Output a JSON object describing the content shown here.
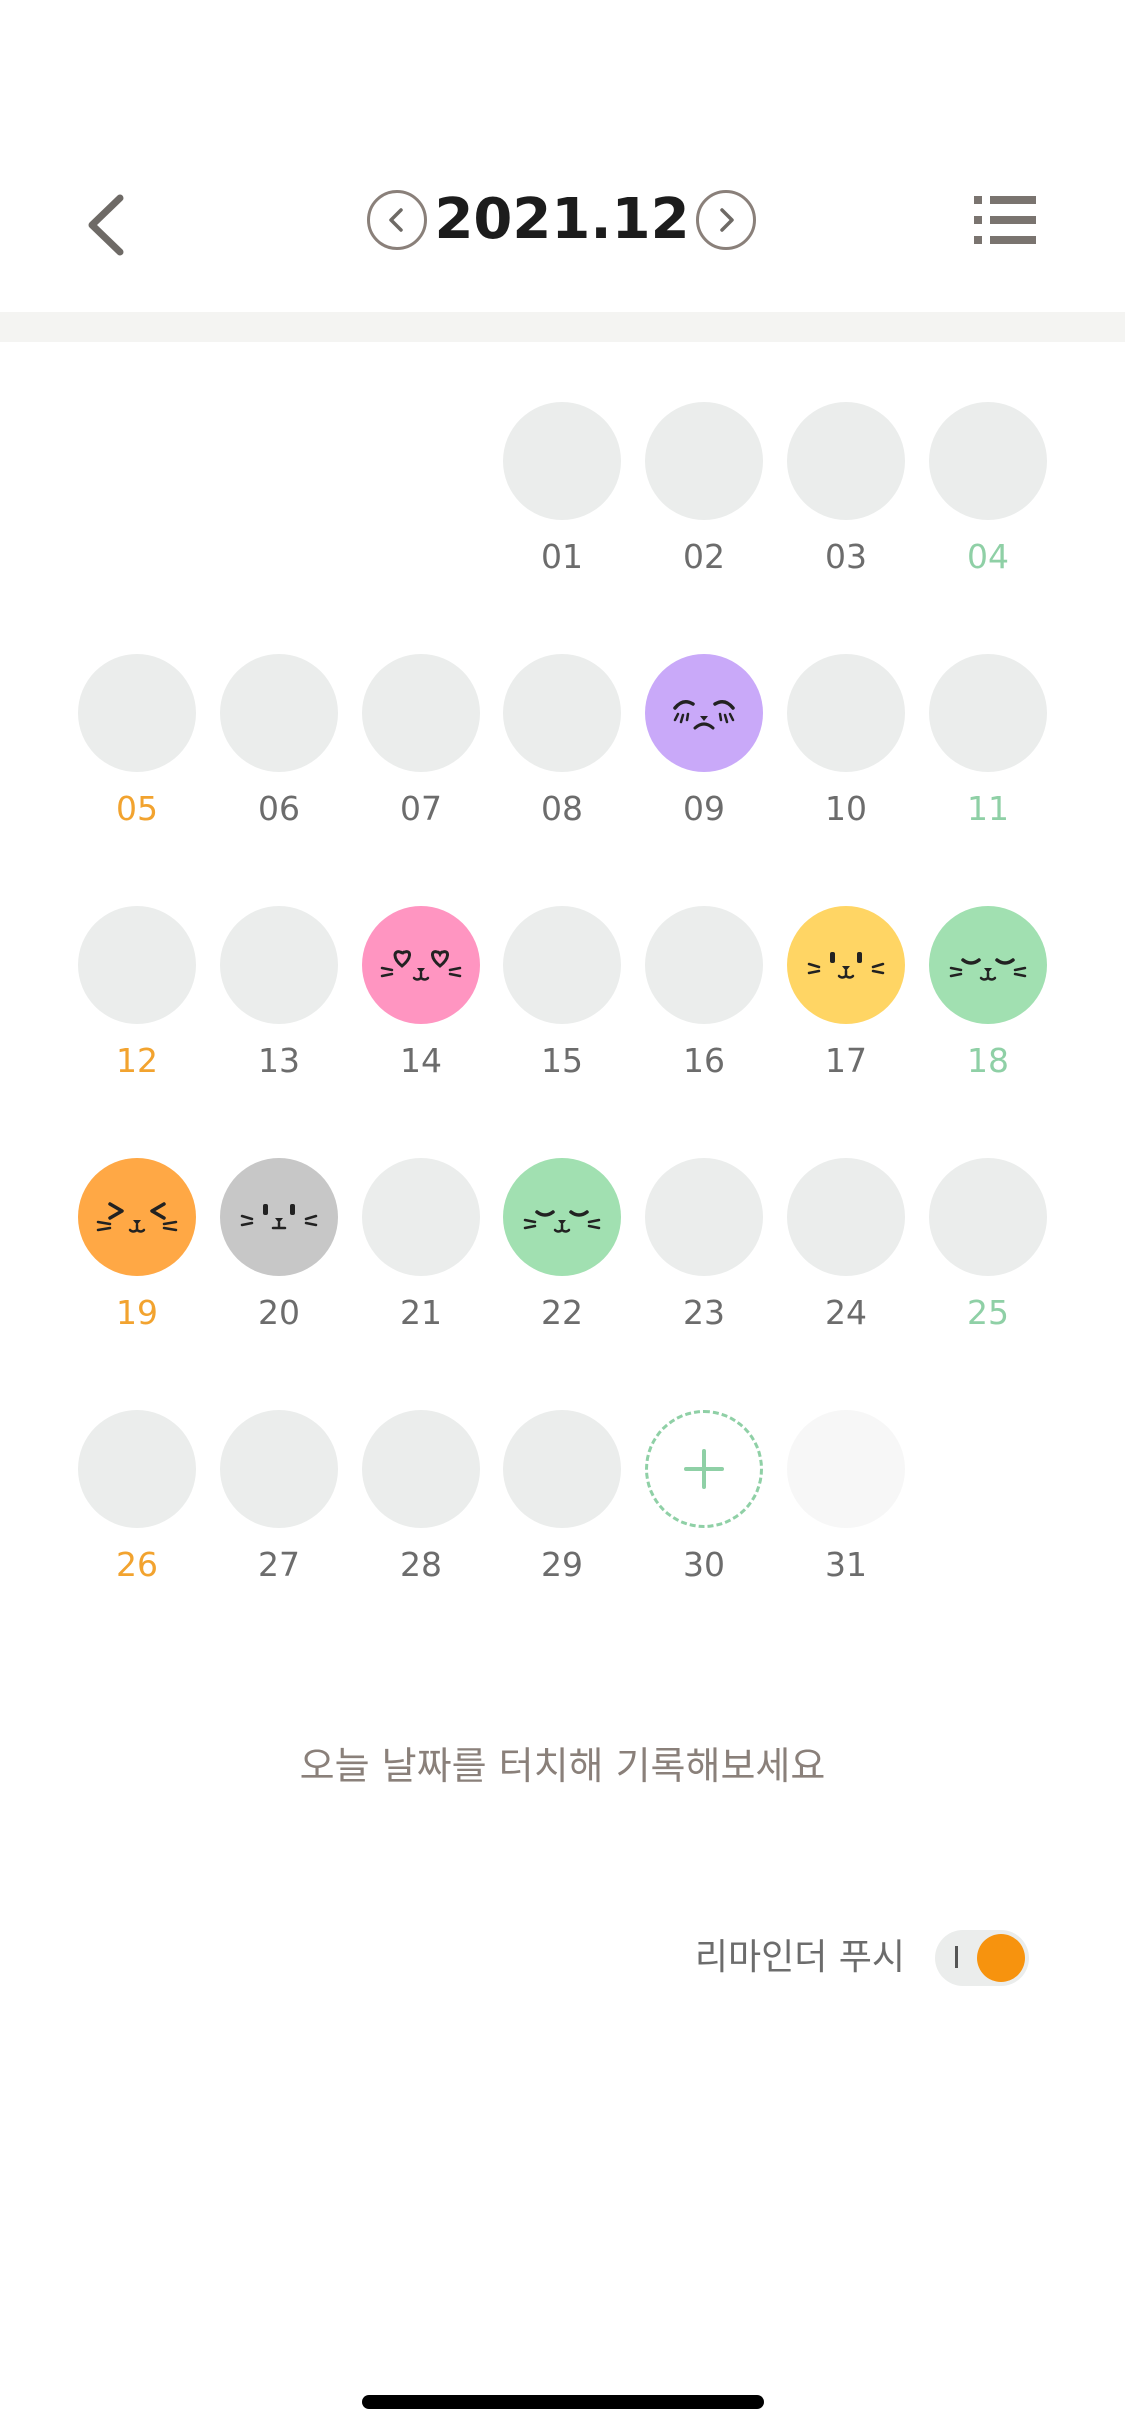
{
  "header": {
    "month": "2021.12",
    "back_icon": "chevron-left-icon",
    "prev_icon": "circle-chevron-left-icon",
    "next_icon": "circle-chevron-right-icon",
    "list_icon": "list-icon"
  },
  "colors": {
    "accent": "#f7930e",
    "saturday": "#8fd0a6",
    "sunday": "#f2a32f",
    "empty_day": "#ebedec",
    "mood_purple": "#c9a9f9",
    "mood_pink": "#ff95c1",
    "mood_yellow": "#ffd564",
    "mood_green": "#a1e0b1",
    "mood_orange": "#ffa845",
    "mood_gray": "#c7c7c7"
  },
  "calendar": {
    "days": [
      {
        "label": "01",
        "mood": null
      },
      {
        "label": "02",
        "mood": null
      },
      {
        "label": "03",
        "mood": null
      },
      {
        "label": "04",
        "mood": null
      },
      {
        "label": "05",
        "mood": null
      },
      {
        "label": "06",
        "mood": null
      },
      {
        "label": "07",
        "mood": null
      },
      {
        "label": "08",
        "mood": null
      },
      {
        "label": "09",
        "mood": "sad-face-icon"
      },
      {
        "label": "10",
        "mood": null
      },
      {
        "label": "11",
        "mood": null
      },
      {
        "label": "12",
        "mood": null
      },
      {
        "label": "13",
        "mood": null
      },
      {
        "label": "14",
        "mood": "heart-eyes-face-icon"
      },
      {
        "label": "15",
        "mood": null
      },
      {
        "label": "16",
        "mood": null
      },
      {
        "label": "17",
        "mood": "smiling-face-icon"
      },
      {
        "label": "18",
        "mood": "content-face-icon"
      },
      {
        "label": "19",
        "mood": "squinting-face-icon"
      },
      {
        "label": "20",
        "mood": "neutral-face-icon"
      },
      {
        "label": "21",
        "mood": null
      },
      {
        "label": "22",
        "mood": "content-face-icon"
      },
      {
        "label": "23",
        "mood": null
      },
      {
        "label": "24",
        "mood": null
      },
      {
        "label": "25",
        "mood": null
      },
      {
        "label": "26",
        "mood": null
      },
      {
        "label": "27",
        "mood": null
      },
      {
        "label": "28",
        "mood": null
      },
      {
        "label": "29",
        "mood": null
      },
      {
        "label": "30",
        "mood": "add-icon"
      },
      {
        "label": "31",
        "mood": null
      }
    ]
  },
  "hint": "오늘 날짜를 터치해 기록해보세요",
  "reminder": {
    "label": "리마인더 푸시",
    "enabled": true
  }
}
